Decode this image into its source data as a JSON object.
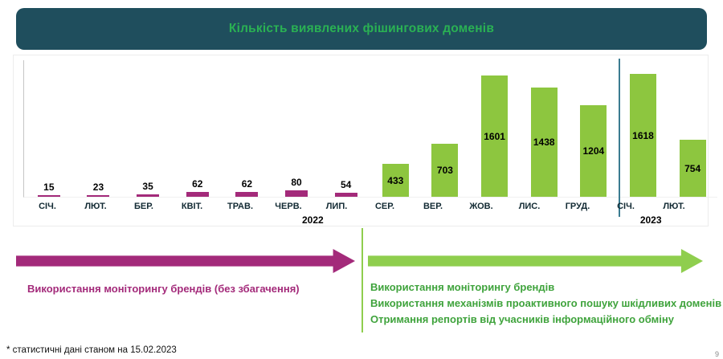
{
  "header": {
    "title": "Кількість виявлених фішингових доменів"
  },
  "chart_data": {
    "type": "bar",
    "title": "Кількість виявлених фішингових доменів",
    "xlabel": "",
    "ylabel": "",
    "categories": [
      "СІЧ.",
      "ЛЮТ.",
      "БЕР.",
      "КВІТ.",
      "ТРАВ.",
      "ЧЕРВ.",
      "ЛИП.",
      "СЕР.",
      "ВЕР.",
      "ЖОВ.",
      "ЛИС.",
      "ГРУД.",
      "СІЧ.",
      "ЛЮТ."
    ],
    "values": [
      15,
      23,
      35,
      62,
      62,
      80,
      54,
      433,
      703,
      1601,
      1438,
      1204,
      1618,
      754
    ],
    "ylim": [
      0,
      1800
    ],
    "grid": false,
    "groups": [
      {
        "key": "magenta",
        "color_key": "magenta",
        "from": 0,
        "to": 6,
        "label_position": "above"
      },
      {
        "key": "green",
        "color_key": "green",
        "from": 7,
        "to": 13,
        "label_position": "inside"
      }
    ],
    "year_labels": [
      {
        "label": "2022",
        "x_percent": 42.9
      },
      {
        "label": "2023",
        "x_percent": 93.0
      }
    ],
    "separator_index": 12
  },
  "timeline": {
    "left_caption": "Використання моніторингу брендів (без збагачення)",
    "right_captions": [
      "Використання моніторингу брендів",
      "Використання механізмів проактивного пошуку шкідливих доменів",
      "Отримання репортів від учасників інформаційного обміну"
    ]
  },
  "footer": {
    "footnote": "* статистичні дані станом на 15.02.2023",
    "page_number": "9"
  },
  "colors": {
    "header_bg": "#1f4e5d",
    "header_text": "#2ab153",
    "magenta": "#a32a7a",
    "green": "#8dc63f",
    "green_arrow": "#8fce4e",
    "green_text": "#3fa33c",
    "separator_line": "#3b7c91"
  }
}
